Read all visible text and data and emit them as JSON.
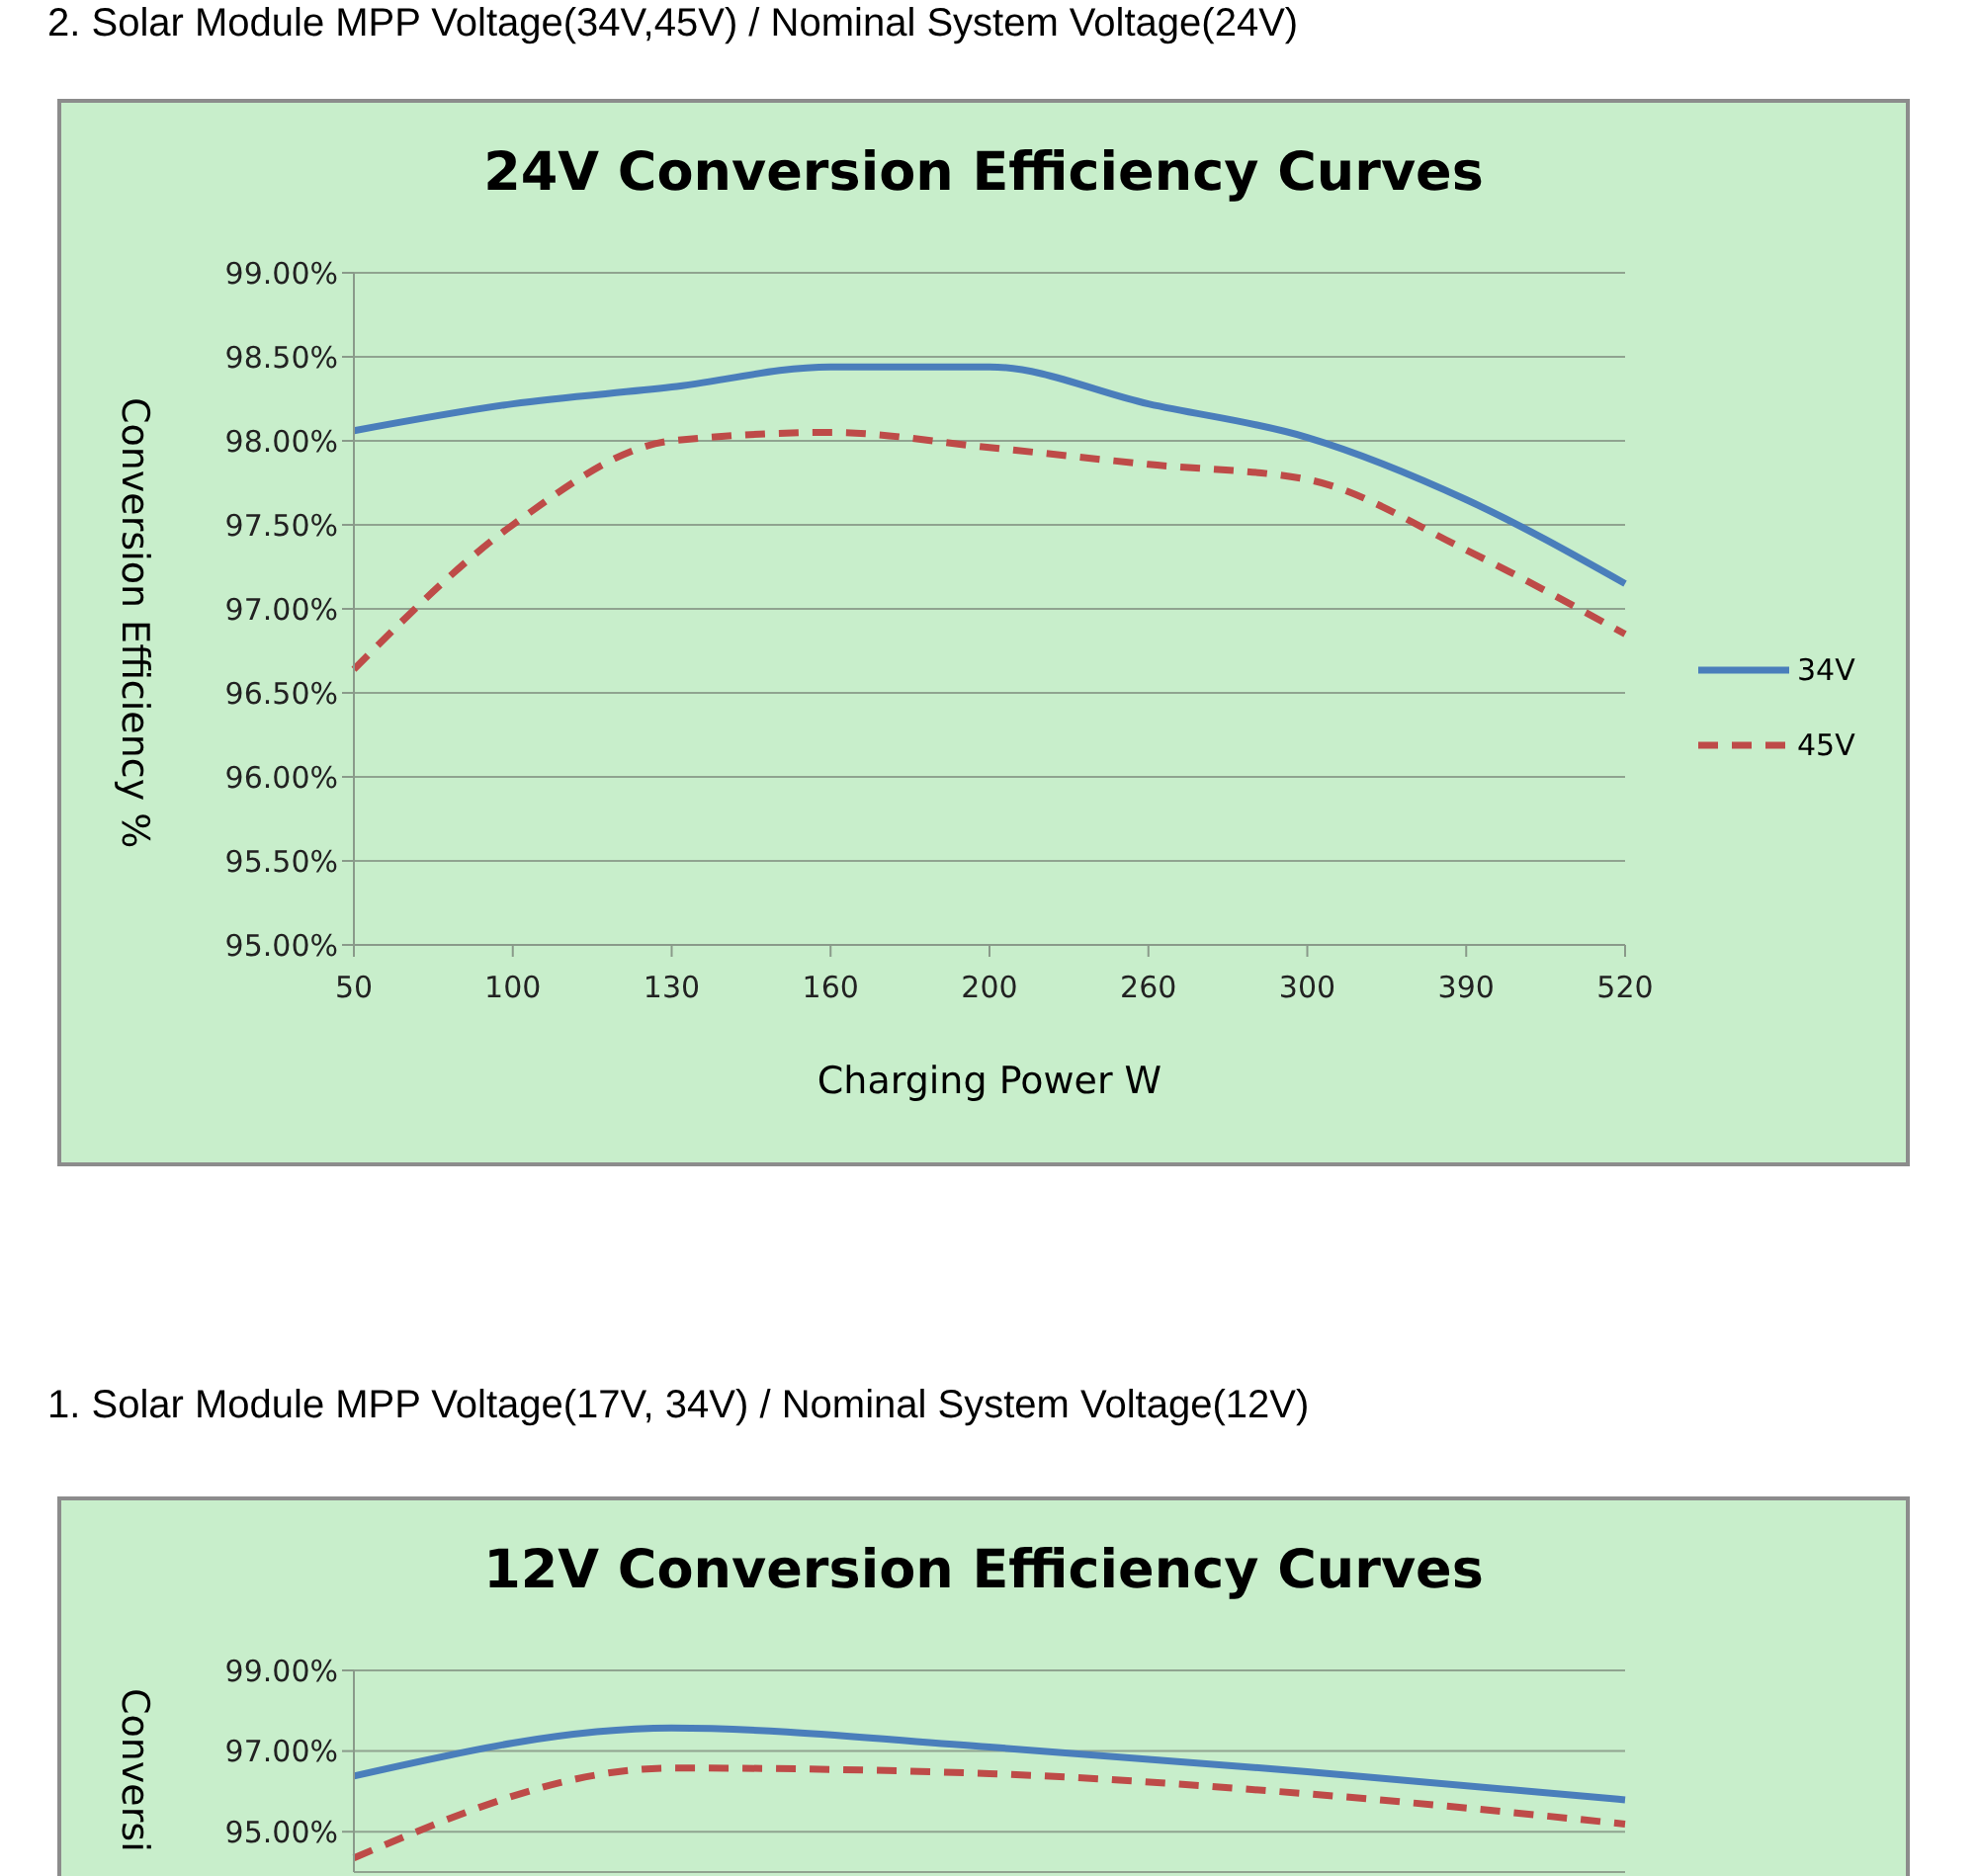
{
  "chart_data": [
    {
      "type": "line",
      "title": "24V Conversion Efficiency Curves",
      "annotations": [
        "2. Solar Module MPP Voltage(34V,45V) / Nominal System Voltage(24V)"
      ],
      "xlabel": "Charging Power W",
      "ylabel": "Conversion Efficiency %",
      "categories": [
        "50",
        "100",
        "130",
        "160",
        "200",
        "260",
        "300",
        "390",
        "520"
      ],
      "series": [
        {
          "name": "34V",
          "color": "#4a7ebb",
          "line_style": "solid",
          "values": [
            98.06,
            98.22,
            98.32,
            98.44,
            98.44,
            98.22,
            98.02,
            97.65,
            97.15
          ]
        },
        {
          "name": "45V",
          "color": "#be4b48",
          "line_style": "dashed",
          "values": [
            96.64,
            97.5,
            98.0,
            98.05,
            97.96,
            97.86,
            97.77,
            97.35,
            96.85
          ]
        }
      ],
      "ylim": [
        95,
        99
      ],
      "yticks": [
        {
          "value": 95,
          "label": "95.00%"
        },
        {
          "value": 95.5,
          "label": "95.50%"
        },
        {
          "value": 96,
          "label": "96.00%"
        },
        {
          "value": 96.5,
          "label": "96.50%"
        },
        {
          "value": 97,
          "label": "97.00%"
        },
        {
          "value": 97.5,
          "label": "97.50%"
        },
        {
          "value": 98,
          "label": "98.00%"
        },
        {
          "value": 98.5,
          "label": "98.50%"
        },
        {
          "value": 99,
          "label": "99.00%"
        }
      ],
      "grid": "y",
      "legend": "right",
      "marker": "none"
    },
    {
      "type": "line",
      "title": "12V Conversion Efficiency Curves",
      "annotations": [
        "1. Solar Module MPP Voltage(17V, 34V) / Nominal System Voltage(12V)"
      ],
      "ylabel": "Conversi",
      "categories": [
        null,
        null,
        null,
        null,
        null
      ],
      "series": [
        {
          "color": "#4a7ebb",
          "line_style": "solid",
          "values": [
            96.38,
            97.57,
            97.1,
            96.49,
            95.79
          ]
        },
        {
          "color": "#be4b48",
          "line_style": "dashed",
          "values": [
            94.35,
            96.58,
            96.44,
            95.94,
            95.19
          ]
        }
      ],
      "ylim": [
        94,
        99
      ],
      "yticks": [
        {
          "value": 95,
          "label": "95.00%"
        },
        {
          "value": 97,
          "label": "97.00%"
        },
        {
          "value": 99,
          "label": "99.00%"
        }
      ],
      "grid": "y",
      "legend": false,
      "marker": "none"
    }
  ]
}
